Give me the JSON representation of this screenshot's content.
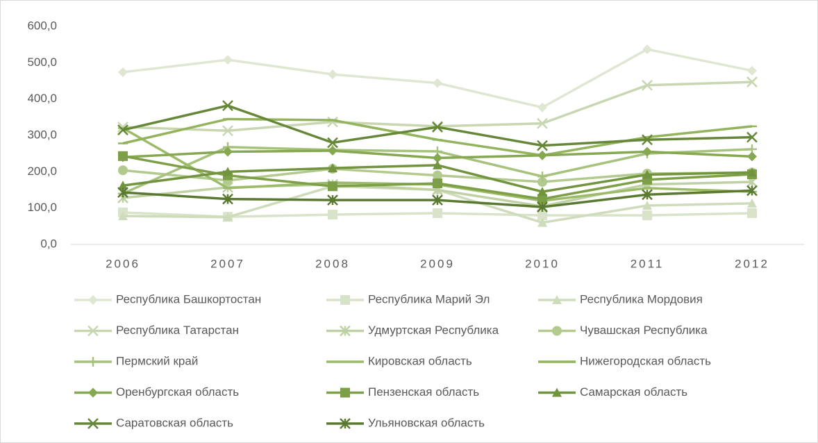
{
  "chart_data": {
    "type": "line",
    "categories": [
      "2006",
      "2007",
      "2008",
      "2009",
      "2010",
      "2011",
      "2012"
    ],
    "ylim": [
      0,
      600
    ],
    "yticks": [
      {
        "value": 0,
        "label": "0,0"
      },
      {
        "value": 100,
        "label": "100,0"
      },
      {
        "value": 200,
        "label": "200,0"
      },
      {
        "value": 300,
        "label": "300,0"
      },
      {
        "value": 400,
        "label": "400,0"
      },
      {
        "value": 500,
        "label": "500,0"
      },
      {
        "value": 600,
        "label": "600,0"
      }
    ],
    "grid": false,
    "legend": "bottom",
    "series": [
      {
        "name": "Республика Башкортостан",
        "color": "#dfe7d3",
        "marker": "diamond",
        "values": [
          474,
          508,
          468,
          444,
          377,
          537,
          478
        ]
      },
      {
        "name": "Республика Марий Эл",
        "color": "#d8e3c9",
        "marker": "square",
        "values": [
          88,
          76,
          82,
          86,
          80,
          80,
          86
        ]
      },
      {
        "name": "Республика Мордовия",
        "color": "#cfdcbb",
        "marker": "triangle",
        "values": [
          78,
          75,
          160,
          150,
          60,
          107,
          113
        ]
      },
      {
        "name": "Республика Татарстан",
        "color": "#c8d7b1",
        "marker": "x",
        "values": [
          323,
          313,
          337,
          325,
          333,
          438,
          447
        ]
      },
      {
        "name": "Удмуртская Республика",
        "color": "#bfd1a4",
        "marker": "asterisk",
        "values": [
          128,
          157,
          165,
          150,
          105,
          165,
          172
        ]
      },
      {
        "name": "Чувашская Республика",
        "color": "#b3ca8f",
        "marker": "circle",
        "values": [
          204,
          176,
          208,
          190,
          172,
          195,
          198
        ]
      },
      {
        "name": "Пермский край",
        "color": "#a7c27c",
        "marker": "plus",
        "values": [
          140,
          268,
          260,
          256,
          187,
          250,
          262
        ]
      },
      {
        "name": "Кировская область",
        "color": "#9cbb68",
        "marker": "dash",
        "values": [
          320,
          155,
          170,
          165,
          120,
          155,
          145
        ]
      },
      {
        "name": "Нижегородская область",
        "color": "#93b45c",
        "marker": "dash",
        "values": [
          278,
          345,
          342,
          288,
          245,
          295,
          325
        ]
      },
      {
        "name": "Оренбургская область",
        "color": "#86a850",
        "marker": "diamond",
        "values": [
          240,
          255,
          258,
          238,
          245,
          255,
          242
        ]
      },
      {
        "name": "Пензенская область",
        "color": "#7d9f47",
        "marker": "square",
        "values": [
          243,
          190,
          160,
          168,
          125,
          178,
          193
        ]
      },
      {
        "name": "Самарская область",
        "color": "#72943f",
        "marker": "triangle",
        "values": [
          162,
          200,
          210,
          218,
          145,
          192,
          198
        ]
      },
      {
        "name": "Саратовская область",
        "color": "#668738",
        "marker": "x",
        "values": [
          315,
          382,
          280,
          323,
          272,
          288,
          295
        ]
      },
      {
        "name": "Ульяновская область",
        "color": "#5b7a31",
        "marker": "asterisk",
        "values": [
          143,
          125,
          122,
          122,
          103,
          137,
          148
        ]
      }
    ]
  }
}
